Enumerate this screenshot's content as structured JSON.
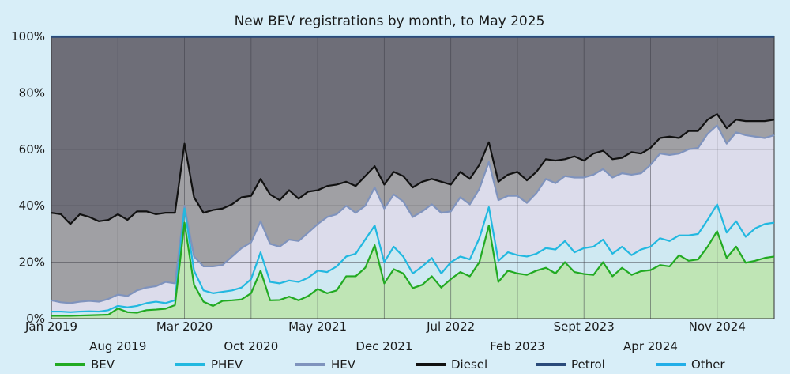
{
  "chart_data": {
    "type": "area",
    "title": "New BEV registrations by month, to  May 2025",
    "xlabel": "",
    "ylabel": "",
    "ylim": [
      0,
      100
    ],
    "y_ticks": [
      "0%",
      "20%",
      "40%",
      "60%",
      "80%",
      "100%"
    ],
    "y_tick_values": [
      0,
      20,
      40,
      60,
      80,
      100
    ],
    "x_tick_labels": [
      {
        "label": "Jan 2019",
        "index": 0,
        "row": 1
      },
      {
        "label": "Aug 2019",
        "index": 7,
        "row": 2
      },
      {
        "label": "Mar 2020",
        "index": 14,
        "row": 1
      },
      {
        "label": "Oct 2020",
        "index": 21,
        "row": 2
      },
      {
        "label": "May 2021",
        "index": 28,
        "row": 1
      },
      {
        "label": "Dec 2021",
        "index": 35,
        "row": 2
      },
      {
        "label": "Jul 2022",
        "index": 42,
        "row": 1
      },
      {
        "label": "Feb 2023",
        "index": 49,
        "row": 2
      },
      {
        "label": "Sept 2023",
        "index": 56,
        "row": 1
      },
      {
        "label": "Apr 2024",
        "index": 63,
        "row": 2
      },
      {
        "label": "Nov 2024",
        "index": 70,
        "row": 1
      }
    ],
    "n_months": 77,
    "series": [
      {
        "name": "BEV",
        "color": "#22aa22",
        "fill": "#bfe5b5",
        "values": [
          1.0,
          1.0,
          1.0,
          1.1,
          1.2,
          1.3,
          1.4,
          3.6,
          2.3,
          2.1,
          3.0,
          3.2,
          3.5,
          4.8,
          34.0,
          12.0,
          6.0,
          4.5,
          6.3,
          6.5,
          6.8,
          9.0,
          17.0,
          6.5,
          6.6,
          7.8,
          6.5,
          8.0,
          10.5,
          9.0,
          10.0,
          15.0,
          15.0,
          18.0,
          26.0,
          12.5,
          17.5,
          16.0,
          10.8,
          12.0,
          15.0,
          11.0,
          14.0,
          16.5,
          15.0,
          20.0,
          33.0,
          13.0,
          17.0,
          16.0,
          15.5,
          17.0,
          18.0,
          16.0,
          20.0,
          16.5,
          15.8,
          15.5,
          20.0,
          15.0,
          18.0,
          15.5,
          16.8,
          17.2,
          19.0,
          18.5,
          22.5,
          20.5,
          21.0,
          25.5,
          31.0,
          21.5,
          25.5,
          19.8,
          20.5,
          21.5,
          22.0
        ]
      },
      {
        "name": "PHEV",
        "color": "#22b8e0",
        "fill": "#cfe9f2",
        "values": [
          2.5,
          2.5,
          2.3,
          2.5,
          2.6,
          2.5,
          3.0,
          4.5,
          4.0,
          4.5,
          5.5,
          6.0,
          5.5,
          6.5,
          39.0,
          17.0,
          10.0,
          9.0,
          9.5,
          10.0,
          11.0,
          14.0,
          23.5,
          13.0,
          12.5,
          13.5,
          13.0,
          14.5,
          17.0,
          16.5,
          18.5,
          22.0,
          23.0,
          28.0,
          33.0,
          20.0,
          25.5,
          22.0,
          16.0,
          18.5,
          21.5,
          16.0,
          20.0,
          22.0,
          21.0,
          28.5,
          39.5,
          20.5,
          23.5,
          22.5,
          22.0,
          23.0,
          25.0,
          24.5,
          27.5,
          23.5,
          25.0,
          25.5,
          28.0,
          23.0,
          25.5,
          22.5,
          24.5,
          25.5,
          28.5,
          27.5,
          29.5,
          29.5,
          30.0,
          35.0,
          40.5,
          30.5,
          34.5,
          29.0,
          32.0,
          33.5,
          34.0
        ]
      },
      {
        "name": "HEV",
        "color": "#7f93bd",
        "fill": "#dcdceb",
        "values": [
          6.5,
          5.8,
          5.5,
          6.0,
          6.3,
          6.0,
          7.0,
          8.5,
          8.0,
          10.0,
          11.0,
          11.5,
          13.0,
          12.5,
          40.0,
          22.0,
          18.5,
          18.5,
          19.0,
          22.0,
          25.0,
          27.0,
          34.5,
          26.5,
          25.5,
          28.0,
          27.5,
          30.5,
          33.5,
          36.0,
          37.0,
          40.0,
          37.5,
          40.0,
          46.5,
          39.0,
          44.0,
          41.5,
          36.0,
          38.0,
          40.5,
          37.5,
          38.0,
          43.0,
          40.5,
          46.0,
          55.5,
          42.0,
          43.5,
          43.5,
          41.0,
          44.5,
          49.5,
          48.0,
          50.5,
          50.0,
          50.0,
          51.0,
          53.0,
          50.0,
          51.5,
          51.0,
          51.5,
          54.5,
          58.5,
          58.0,
          58.5,
          60.0,
          60.5,
          65.5,
          68.5,
          62.0,
          66.0,
          65.0,
          64.5,
          64.0,
          65.0
        ]
      },
      {
        "name": "Diesel",
        "color": "#111111",
        "fill": "#a0a0a4",
        "values": [
          37.5,
          37.0,
          33.5,
          37.0,
          36.0,
          34.5,
          35.0,
          37.0,
          35.0,
          38.0,
          38.0,
          37.0,
          37.5,
          37.5,
          62.0,
          43.0,
          37.5,
          38.5,
          39.0,
          40.5,
          43.0,
          43.5,
          49.5,
          44.0,
          42.0,
          45.5,
          42.5,
          45.0,
          45.5,
          47.0,
          47.5,
          48.5,
          47.0,
          50.5,
          54.0,
          47.5,
          52.0,
          50.5,
          46.5,
          48.5,
          49.5,
          48.5,
          47.5,
          52.0,
          49.5,
          54.5,
          62.5,
          48.5,
          51.0,
          52.0,
          49.0,
          52.0,
          56.5,
          56.0,
          56.5,
          57.5,
          56.0,
          58.5,
          59.5,
          56.5,
          57.0,
          59.0,
          58.5,
          60.5,
          64.0,
          64.5,
          64.0,
          66.5,
          66.5,
          70.5,
          72.5,
          67.5,
          70.5,
          70.0,
          70.0,
          70.0,
          70.5
        ]
      },
      {
        "name": "Petrol",
        "color": "#2a4a7a",
        "fill": "#6e6e78",
        "values": [
          99.8,
          99.8,
          99.8,
          99.8,
          99.8,
          99.8,
          99.8,
          99.8,
          99.8,
          99.8,
          99.8,
          99.8,
          99.8,
          99.8,
          99.8,
          99.8,
          99.8,
          99.8,
          99.8,
          99.8,
          99.8,
          99.8,
          99.8,
          99.8,
          99.8,
          99.8,
          99.8,
          99.8,
          99.8,
          99.8,
          99.8,
          99.8,
          99.8,
          99.8,
          99.8,
          99.8,
          99.8,
          99.8,
          99.8,
          99.8,
          99.8,
          99.8,
          99.8,
          99.8,
          99.8,
          99.8,
          99.8,
          99.8,
          99.8,
          99.8,
          99.8,
          99.8,
          99.8,
          99.8,
          99.8,
          99.8,
          99.8,
          99.8,
          99.8,
          99.8,
          99.8,
          99.8,
          99.8,
          99.8,
          99.8,
          99.8,
          99.8,
          99.8,
          99.8,
          99.8,
          99.8,
          99.8,
          99.8,
          99.8,
          99.8,
          99.8,
          99.8
        ]
      },
      {
        "name": "Other",
        "color": "#22aee8",
        "fill": "#5a5a64",
        "values": [
          100,
          100,
          100,
          100,
          100,
          100,
          100,
          100,
          100,
          100,
          100,
          100,
          100,
          100,
          100,
          100,
          100,
          100,
          100,
          100,
          100,
          100,
          100,
          100,
          100,
          100,
          100,
          100,
          100,
          100,
          100,
          100,
          100,
          100,
          100,
          100,
          100,
          100,
          100,
          100,
          100,
          100,
          100,
          100,
          100,
          100,
          100,
          100,
          100,
          100,
          100,
          100,
          100,
          100,
          100,
          100,
          100,
          100,
          100,
          100,
          100,
          100,
          100,
          100,
          100,
          100,
          100,
          100,
          100,
          100,
          100,
          100,
          100,
          100,
          100,
          100,
          100
        ]
      }
    ],
    "legend": [
      "BEV",
      "PHEV",
      "HEV",
      "Diesel",
      "Petrol",
      "Other"
    ],
    "legend_position": "bottom",
    "grid": true
  }
}
